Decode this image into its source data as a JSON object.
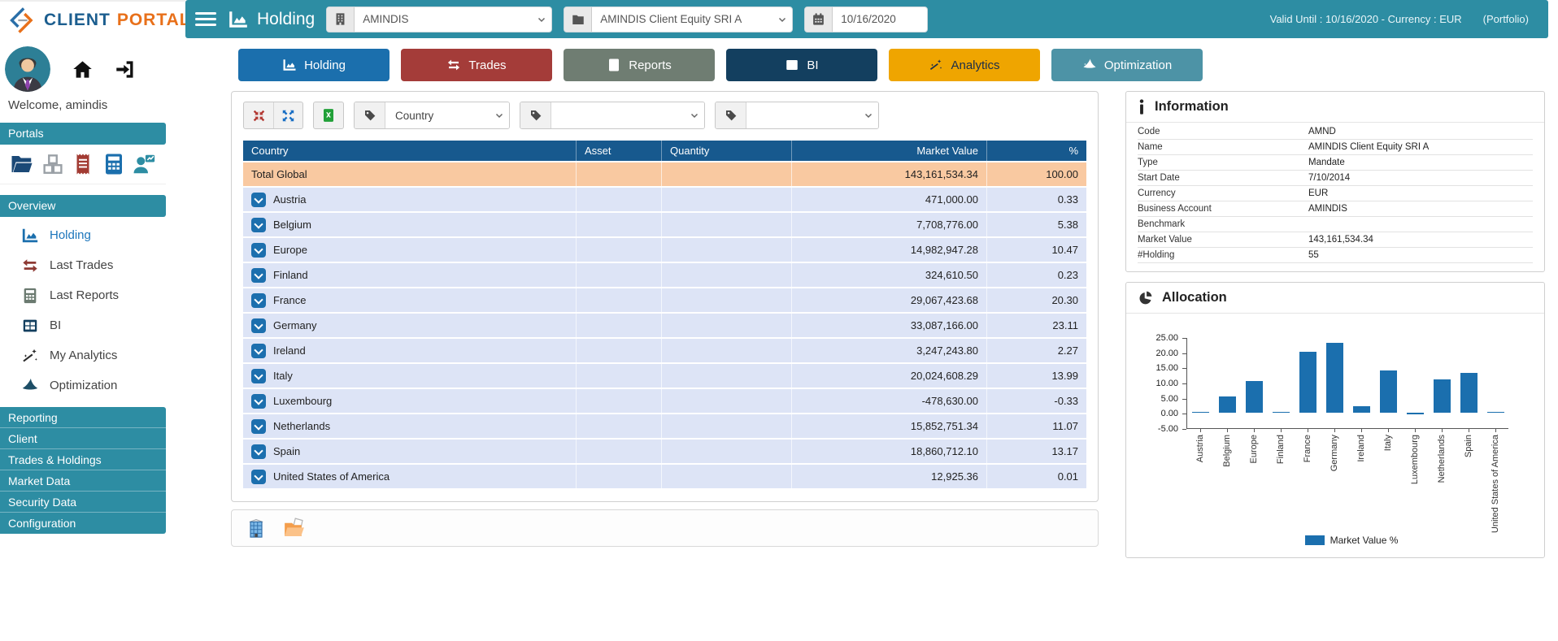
{
  "colors": {
    "teal": "#2d8da3",
    "table_header": "#17598e",
    "row_blue": "#dde4f6",
    "total_peach": "#f9c9a1",
    "bar_blue": "#1b6fae",
    "active_link": "#1b75bb"
  },
  "logo": {
    "client": "CLIENT",
    "portal": "PORTAL"
  },
  "header": {
    "title": "Holding",
    "account_select": "AMINDIS",
    "portfolio_select": "AMINDIS Client Equity SRI A",
    "date_value": "10/16/2020",
    "valid_until": "Valid Until : 10/16/2020 - Currency : EUR",
    "portfolio_label": "(Portfolio)"
  },
  "sidebar": {
    "welcome": "Welcome, amindis",
    "portals_header": "Portals",
    "overview_header": "Overview",
    "portal_icons": [
      {
        "name": "portal-documents-button",
        "icon": "folder-open-icon",
        "color": "#1b4977"
      },
      {
        "name": "portal-products-button",
        "icon": "cubes-icon",
        "color": "#9aa0a6"
      },
      {
        "name": "portal-invoices-button",
        "icon": "receipt-icon",
        "color": "#a23b33"
      },
      {
        "name": "portal-reports-button",
        "icon": "calculator-icon",
        "color": "#1b6fad"
      },
      {
        "name": "portal-analytics-button",
        "icon": "person-chart-icon",
        "color": "#2d8da3"
      }
    ],
    "menu": [
      {
        "label": "Holding",
        "icon": "area-chart-icon",
        "icon_color": "#1b6fad",
        "active": true
      },
      {
        "label": "Last Trades",
        "icon": "swap-arrows-icon",
        "icon_color": "#8e3a34",
        "active": false
      },
      {
        "label": "Last Reports",
        "icon": "calculator-icon",
        "icon_color": "#6b7a70",
        "active": false
      },
      {
        "label": "BI",
        "icon": "bi-grid-icon",
        "icon_color": "#133f5f",
        "active": false
      },
      {
        "label": "My Analytics",
        "icon": "wand-icon",
        "icon_color": "#2b2b2b",
        "active": false
      },
      {
        "label": "Optimization",
        "icon": "wizard-hat-icon",
        "icon_color": "#1d4e66",
        "active": false
      }
    ],
    "sections": [
      "Reporting",
      "Client",
      "Trades & Holdings",
      "Market Data",
      "Security Data",
      "Configuration"
    ]
  },
  "tabs": [
    {
      "label": "Holding",
      "icon": "area-chart-icon",
      "color": "#1b6fad",
      "text_color": "#ffffff"
    },
    {
      "label": "Trades",
      "icon": "swap-arrows-icon",
      "color": "#a43c39",
      "text_color": "#ffffff"
    },
    {
      "label": "Reports",
      "icon": "calculator-icon",
      "color": "#6f7d72",
      "text_color": "#ffffff"
    },
    {
      "label": "BI",
      "icon": "bi-grid-icon",
      "color": "#133f5f",
      "text_color": "#ffffff"
    },
    {
      "label": "Analytics",
      "icon": "wand-icon",
      "color": "#efa500",
      "text_color": "#1b2e4a"
    },
    {
      "label": "Optimization",
      "icon": "wizard-hat-icon",
      "color": "#4d93a6",
      "text_color": "#ffffff"
    }
  ],
  "toolbar": {
    "filters": [
      {
        "value": "Country"
      },
      {
        "value": ""
      },
      {
        "value": ""
      }
    ]
  },
  "table": {
    "columns": [
      "Country",
      "Asset",
      "Quantity",
      "Market Value",
      "%"
    ],
    "total_row": {
      "label": "Total Global",
      "asset": "",
      "quantity": "",
      "market_value": "143,161,534.34",
      "pct": "100.00"
    },
    "rows": [
      {
        "country": "Austria",
        "asset": "",
        "quantity": "",
        "market_value": "471,000.00",
        "pct": "0.33"
      },
      {
        "country": "Belgium",
        "asset": "",
        "quantity": "",
        "market_value": "7,708,776.00",
        "pct": "5.38"
      },
      {
        "country": "Europe",
        "asset": "",
        "quantity": "",
        "market_value": "14,982,947.28",
        "pct": "10.47"
      },
      {
        "country": "Finland",
        "asset": "",
        "quantity": "",
        "market_value": "324,610.50",
        "pct": "0.23"
      },
      {
        "country": "France",
        "asset": "",
        "quantity": "",
        "market_value": "29,067,423.68",
        "pct": "20.30"
      },
      {
        "country": "Germany",
        "asset": "",
        "quantity": "",
        "market_value": "33,087,166.00",
        "pct": "23.11"
      },
      {
        "country": "Ireland",
        "asset": "",
        "quantity": "",
        "market_value": "3,247,243.80",
        "pct": "2.27"
      },
      {
        "country": "Italy",
        "asset": "",
        "quantity": "",
        "market_value": "20,024,608.29",
        "pct": "13.99"
      },
      {
        "country": "Luxembourg",
        "asset": "",
        "quantity": "",
        "market_value": "-478,630.00",
        "pct": "-0.33"
      },
      {
        "country": "Netherlands",
        "asset": "",
        "quantity": "",
        "market_value": "15,852,751.34",
        "pct": "11.07"
      },
      {
        "country": "Spain",
        "asset": "",
        "quantity": "",
        "market_value": "18,860,712.10",
        "pct": "13.17"
      },
      {
        "country": "United States of America",
        "asset": "",
        "quantity": "",
        "market_value": "12,925.36",
        "pct": "0.01"
      }
    ]
  },
  "info_panel": {
    "title": "Information",
    "fields": [
      {
        "label": "Code",
        "value": "AMND"
      },
      {
        "label": "Name",
        "value": "AMINDIS Client Equity SRI A"
      },
      {
        "label": "Type",
        "value": "Mandate"
      },
      {
        "label": "Start Date",
        "value": "7/10/2014"
      },
      {
        "label": "Currency",
        "value": "EUR"
      },
      {
        "label": "Business Account",
        "value": "AMINDIS"
      },
      {
        "label": "Benchmark",
        "value": ""
      },
      {
        "label": "Market Value",
        "value": "143,161,534.34"
      },
      {
        "label": "#Holding",
        "value": "55"
      }
    ]
  },
  "allocation_panel": {
    "title": "Allocation"
  },
  "chart_data": {
    "type": "bar",
    "title": "Allocation",
    "categories": [
      "Austria",
      "Belgium",
      "Europe",
      "Finland",
      "France",
      "Germany",
      "Ireland",
      "Italy",
      "Luxembourg",
      "Netherlands",
      "Spain",
      "United States of America"
    ],
    "values": [
      0.33,
      5.38,
      10.47,
      0.23,
      20.3,
      23.11,
      2.27,
      13.99,
      -0.33,
      11.07,
      13.17,
      0.01
    ],
    "xlabel": "",
    "ylabel": "",
    "ylim": [
      -5,
      25
    ],
    "yticks": [
      25,
      20,
      15,
      10,
      5,
      0,
      -5
    ],
    "grid": false,
    "legend": [
      "Market Value %"
    ],
    "legend_position": "bottom",
    "bar_color": "#1b6fae"
  }
}
